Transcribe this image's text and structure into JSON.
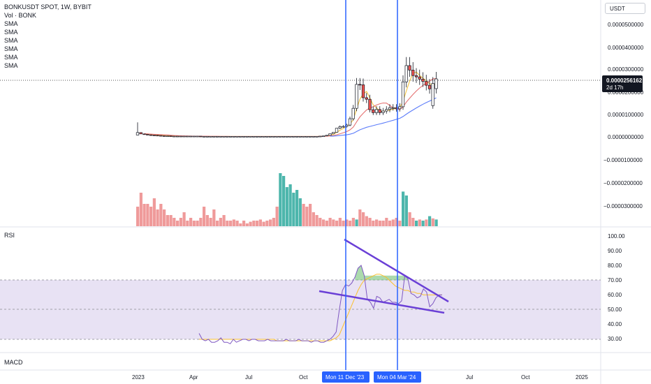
{
  "header": {
    "symbol_line": "BONKUSDT SPOT, 1W, BYBIT",
    "volume_label": "Vol · BONK",
    "sma_labels": [
      "SMA",
      "SMA",
      "SMA",
      "SMA",
      "SMA",
      "SMA"
    ],
    "currency_button": "USDT"
  },
  "price_axis": {
    "ticks": [
      "0.0000500000",
      "0.0000400000",
      "0.0000300000",
      "0.0000200000",
      "0.0000100000",
      "0.0000000000",
      "−0.0000100000",
      "−0.0000200000",
      "−0.0000300000"
    ],
    "last_price": "0.0000256162",
    "countdown": "2d 17h"
  },
  "rsi_panel": {
    "label": "RSI",
    "ticks": [
      "100.00",
      "90.00",
      "80.00",
      "70.00",
      "60.00",
      "50.00",
      "40.00",
      "30.00"
    ]
  },
  "macd_panel": {
    "label": "MACD"
  },
  "time_axis": {
    "labels": [
      "2023",
      "Apr",
      "Jul",
      "Oct",
      "Jul",
      "Oct",
      "2025"
    ],
    "markers": [
      "Mon 11 Dec '23",
      "Mon 04 Mar '24"
    ]
  },
  "colors": {
    "up": "#ffffff",
    "down": "#ef5350",
    "vol_up": "#4db6ac",
    "vol_down": "#ef9a9a",
    "marker": "#2962ff",
    "rsi_line": "#7e57c2",
    "rsi_ma": "#fbc02d",
    "trendline": "#6a3fd6",
    "sma_red": "#e57373",
    "sma_blue": "#5c7cfa",
    "sma_yellow": "#f4c542"
  },
  "chart_data": {
    "type": "candlestick",
    "interval": "1W",
    "price_ylim": [
      -3.5e-05,
      6e-05
    ],
    "rsi_ylim": [
      25,
      102
    ],
    "candles_close": [
      1.9e-06,
      1.3e-06,
      1.1e-06,
      9e-07,
      8e-07,
      7e-07,
      6e-07,
      5e-07,
      4e-07,
      4e-07,
      3e-07,
      3e-07,
      3e-07,
      3e-07,
      3e-07,
      3e-07,
      3e-07,
      3e-07,
      3e-07,
      2e-07,
      2e-07,
      2e-07,
      2e-07,
      2e-07,
      2e-07,
      2e-07,
      2e-07,
      2e-07,
      2e-07,
      2e-07,
      2e-07,
      2e-07,
      2e-07,
      2e-07,
      2e-07,
      2e-07,
      2e-07,
      2e-07,
      2e-07,
      2e-07,
      2e-07,
      2e-07,
      2e-07,
      2e-07,
      2e-07,
      2e-07,
      2e-07,
      2e-07,
      2e-07,
      2e-07,
      2e-07,
      2e-07,
      2e-07,
      2e-07,
      2e-07,
      3e-07,
      4e-07,
      7e-07,
      1.4e-06,
      2e-06,
      3.8e-06,
      4.5e-06,
      4.6e-06,
      5.2e-06,
      8e-06,
      1.26e-05,
      2.32e-05,
      2.3e-05,
      1.73e-05,
      1.66e-05,
      1.2e-05,
      1.07e-05,
      1.21e-05,
      1.07e-05,
      1.14e-05,
      1.21e-05,
      1.29e-05,
      1.29e-05,
      1.24e-05,
      1.33e-05,
      2.43e-05,
      3.15e-05,
      2.95e-05,
      2.71e-05,
      2.65e-05,
      2.55e-05,
      2.45e-05,
      2.28e-05,
      2.12e-05,
      2.36e-05,
      2.56162e-05
    ],
    "candles_open": [
      8e-07,
      1.9e-06,
      1.3e-06,
      1.1e-06,
      9e-07,
      8e-07,
      7e-07,
      6e-07,
      5e-07,
      4e-07,
      4e-07,
      3e-07,
      3e-07,
      3e-07,
      3e-07,
      3e-07,
      3e-07,
      3e-07,
      3e-07,
      3e-07,
      2e-07,
      2e-07,
      2e-07,
      2e-07,
      2e-07,
      2e-07,
      2e-07,
      2e-07,
      2e-07,
      2e-07,
      2e-07,
      2e-07,
      2e-07,
      2e-07,
      2e-07,
      2e-07,
      2e-07,
      2e-07,
      2e-07,
      2e-07,
      2e-07,
      2e-07,
      2e-07,
      2e-07,
      2e-07,
      2e-07,
      2e-07,
      2e-07,
      2e-07,
      2e-07,
      2e-07,
      2e-07,
      2e-07,
      2e-07,
      2e-07,
      2e-07,
      3e-07,
      4e-07,
      7e-07,
      1.4e-06,
      2e-06,
      3.8e-06,
      4.5e-06,
      4.6e-06,
      5.2e-06,
      8e-06,
      1.26e-05,
      2.32e-05,
      2.3e-05,
      1.73e-05,
      1.66e-05,
      1.2e-05,
      1.07e-05,
      1.21e-05,
      1.07e-05,
      1.14e-05,
      1.21e-05,
      1.29e-05,
      1.29e-05,
      1.24e-05,
      1.33e-05,
      2.43e-05,
      3.15e-05,
      2.95e-05,
      2.71e-05,
      2.65e-05,
      2.55e-05,
      2.45e-05,
      2.28e-05,
      1.38e-05,
      2.13e-05
    ],
    "volume_rel": [
      0.35,
      0.6,
      0.4,
      0.4,
      0.35,
      0.5,
      0.3,
      0.4,
      0.3,
      0.2,
      0.2,
      0.15,
      0.1,
      0.15,
      0.25,
      0.1,
      0.15,
      0.1,
      0.1,
      0.15,
      0.35,
      0.2,
      0.15,
      0.3,
      0.1,
      0.15,
      0.2,
      0.1,
      0.1,
      0.12,
      0.1,
      0.05,
      0.1,
      0.05,
      0.08,
      0.1,
      0.1,
      0.12,
      0.08,
      0.1,
      0.12,
      0.15,
      0.35,
      0.95,
      0.9,
      0.7,
      0.75,
      0.6,
      0.65,
      0.5,
      0.4,
      0.35,
      0.4,
      0.25,
      0.2,
      0.15,
      0.12,
      0.1,
      0.15,
      0.12,
      0.1,
      0.15,
      0.1,
      0.12,
      0.1,
      0.15,
      0.12,
      0.3,
      0.25,
      0.18,
      0.15,
      0.1,
      0.12,
      0.1,
      0.1,
      0.15,
      0.1,
      0.12,
      0.15,
      0.1,
      0.62,
      0.55,
      0.25,
      0.15,
      0.1,
      0.12,
      0.1,
      0.12,
      0.18,
      0.14,
      0.12
    ],
    "rsi": [
      34,
      30,
      29,
      30,
      28,
      28,
      29,
      31,
      28,
      28,
      27,
      30,
      28,
      29,
      30,
      30,
      29,
      30,
      30,
      29,
      29,
      29,
      30,
      29,
      29,
      29,
      29,
      29,
      30,
      29,
      29,
      29,
      30,
      29,
      29,
      29,
      28,
      29,
      29,
      28,
      28,
      29,
      30,
      32,
      35,
      50,
      63,
      67,
      66,
      68,
      72,
      78,
      80,
      73,
      57,
      55,
      51,
      59,
      58,
      55,
      56,
      57,
      55,
      55,
      54,
      56,
      73,
      71,
      61,
      60,
      58,
      59,
      64,
      62,
      52,
      54,
      58,
      60,
      60
    ],
    "rsi_ma": [
      30,
      30,
      30,
      30,
      30,
      30,
      30,
      30,
      30,
      30,
      30,
      30,
      30,
      30,
      30,
      30,
      30,
      30,
      30,
      30,
      30,
      30,
      30,
      30,
      30,
      29,
      29,
      29,
      29,
      29,
      29,
      29,
      29,
      29,
      29,
      29,
      29,
      29,
      29,
      29,
      29,
      29,
      29,
      30,
      31,
      33,
      38,
      43,
      48,
      53,
      58,
      63,
      67,
      70,
      71,
      72,
      73,
      74,
      74,
      73,
      72,
      70,
      68,
      66,
      65,
      64,
      63,
      63,
      62,
      62,
      61,
      61,
      60,
      60,
      60,
      60,
      60,
      60,
      60
    ],
    "rsi_bands": [
      70,
      30,
      50
    ]
  }
}
